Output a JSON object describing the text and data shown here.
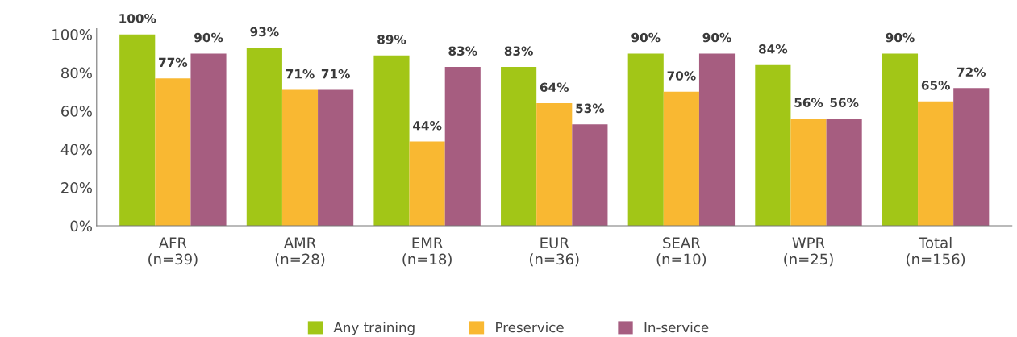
{
  "chart_data": {
    "type": "bar",
    "categories": [
      "AFR\n(n=39)",
      "AMR\n(n=28)",
      "EMR\n(n=18)",
      "EUR\n(n=36)",
      "SEAR\n(n=10)",
      "WPR\n(n=25)",
      "Total\n(n=156)"
    ],
    "series": [
      {
        "name": "Any training",
        "color": "#a2c617",
        "values": [
          100,
          93,
          89,
          83,
          90,
          84,
          90
        ],
        "value_labels": [
          "100%",
          "93%",
          "89%",
          "83%",
          "90%",
          "84%",
          "90%"
        ]
      },
      {
        "name": "Preservice",
        "color": "#f9b832",
        "values": [
          77,
          71,
          44,
          64,
          70,
          56,
          65
        ],
        "value_labels": [
          "77%",
          "71%",
          "44%",
          "64%",
          "70%",
          "56%",
          "65%"
        ]
      },
      {
        "name": "In-service",
        "color": "#a65d80",
        "values": [
          90,
          71,
          83,
          53,
          90,
          56,
          72
        ],
        "value_labels": [
          "90%",
          "71%",
          "83%",
          "53%",
          "90%",
          "56%",
          "72%"
        ]
      }
    ],
    "ylim": [
      0,
      103
    ],
    "yticks": [
      {
        "value": 0,
        "label": "0%"
      },
      {
        "value": 20,
        "label": "20%"
      },
      {
        "value": 40,
        "label": "40%"
      },
      {
        "value": 60,
        "label": "60%"
      },
      {
        "value": 80,
        "label": "80%"
      },
      {
        "value": 100,
        "label": "100%"
      }
    ],
    "legend": "bottom",
    "grid": false
  }
}
